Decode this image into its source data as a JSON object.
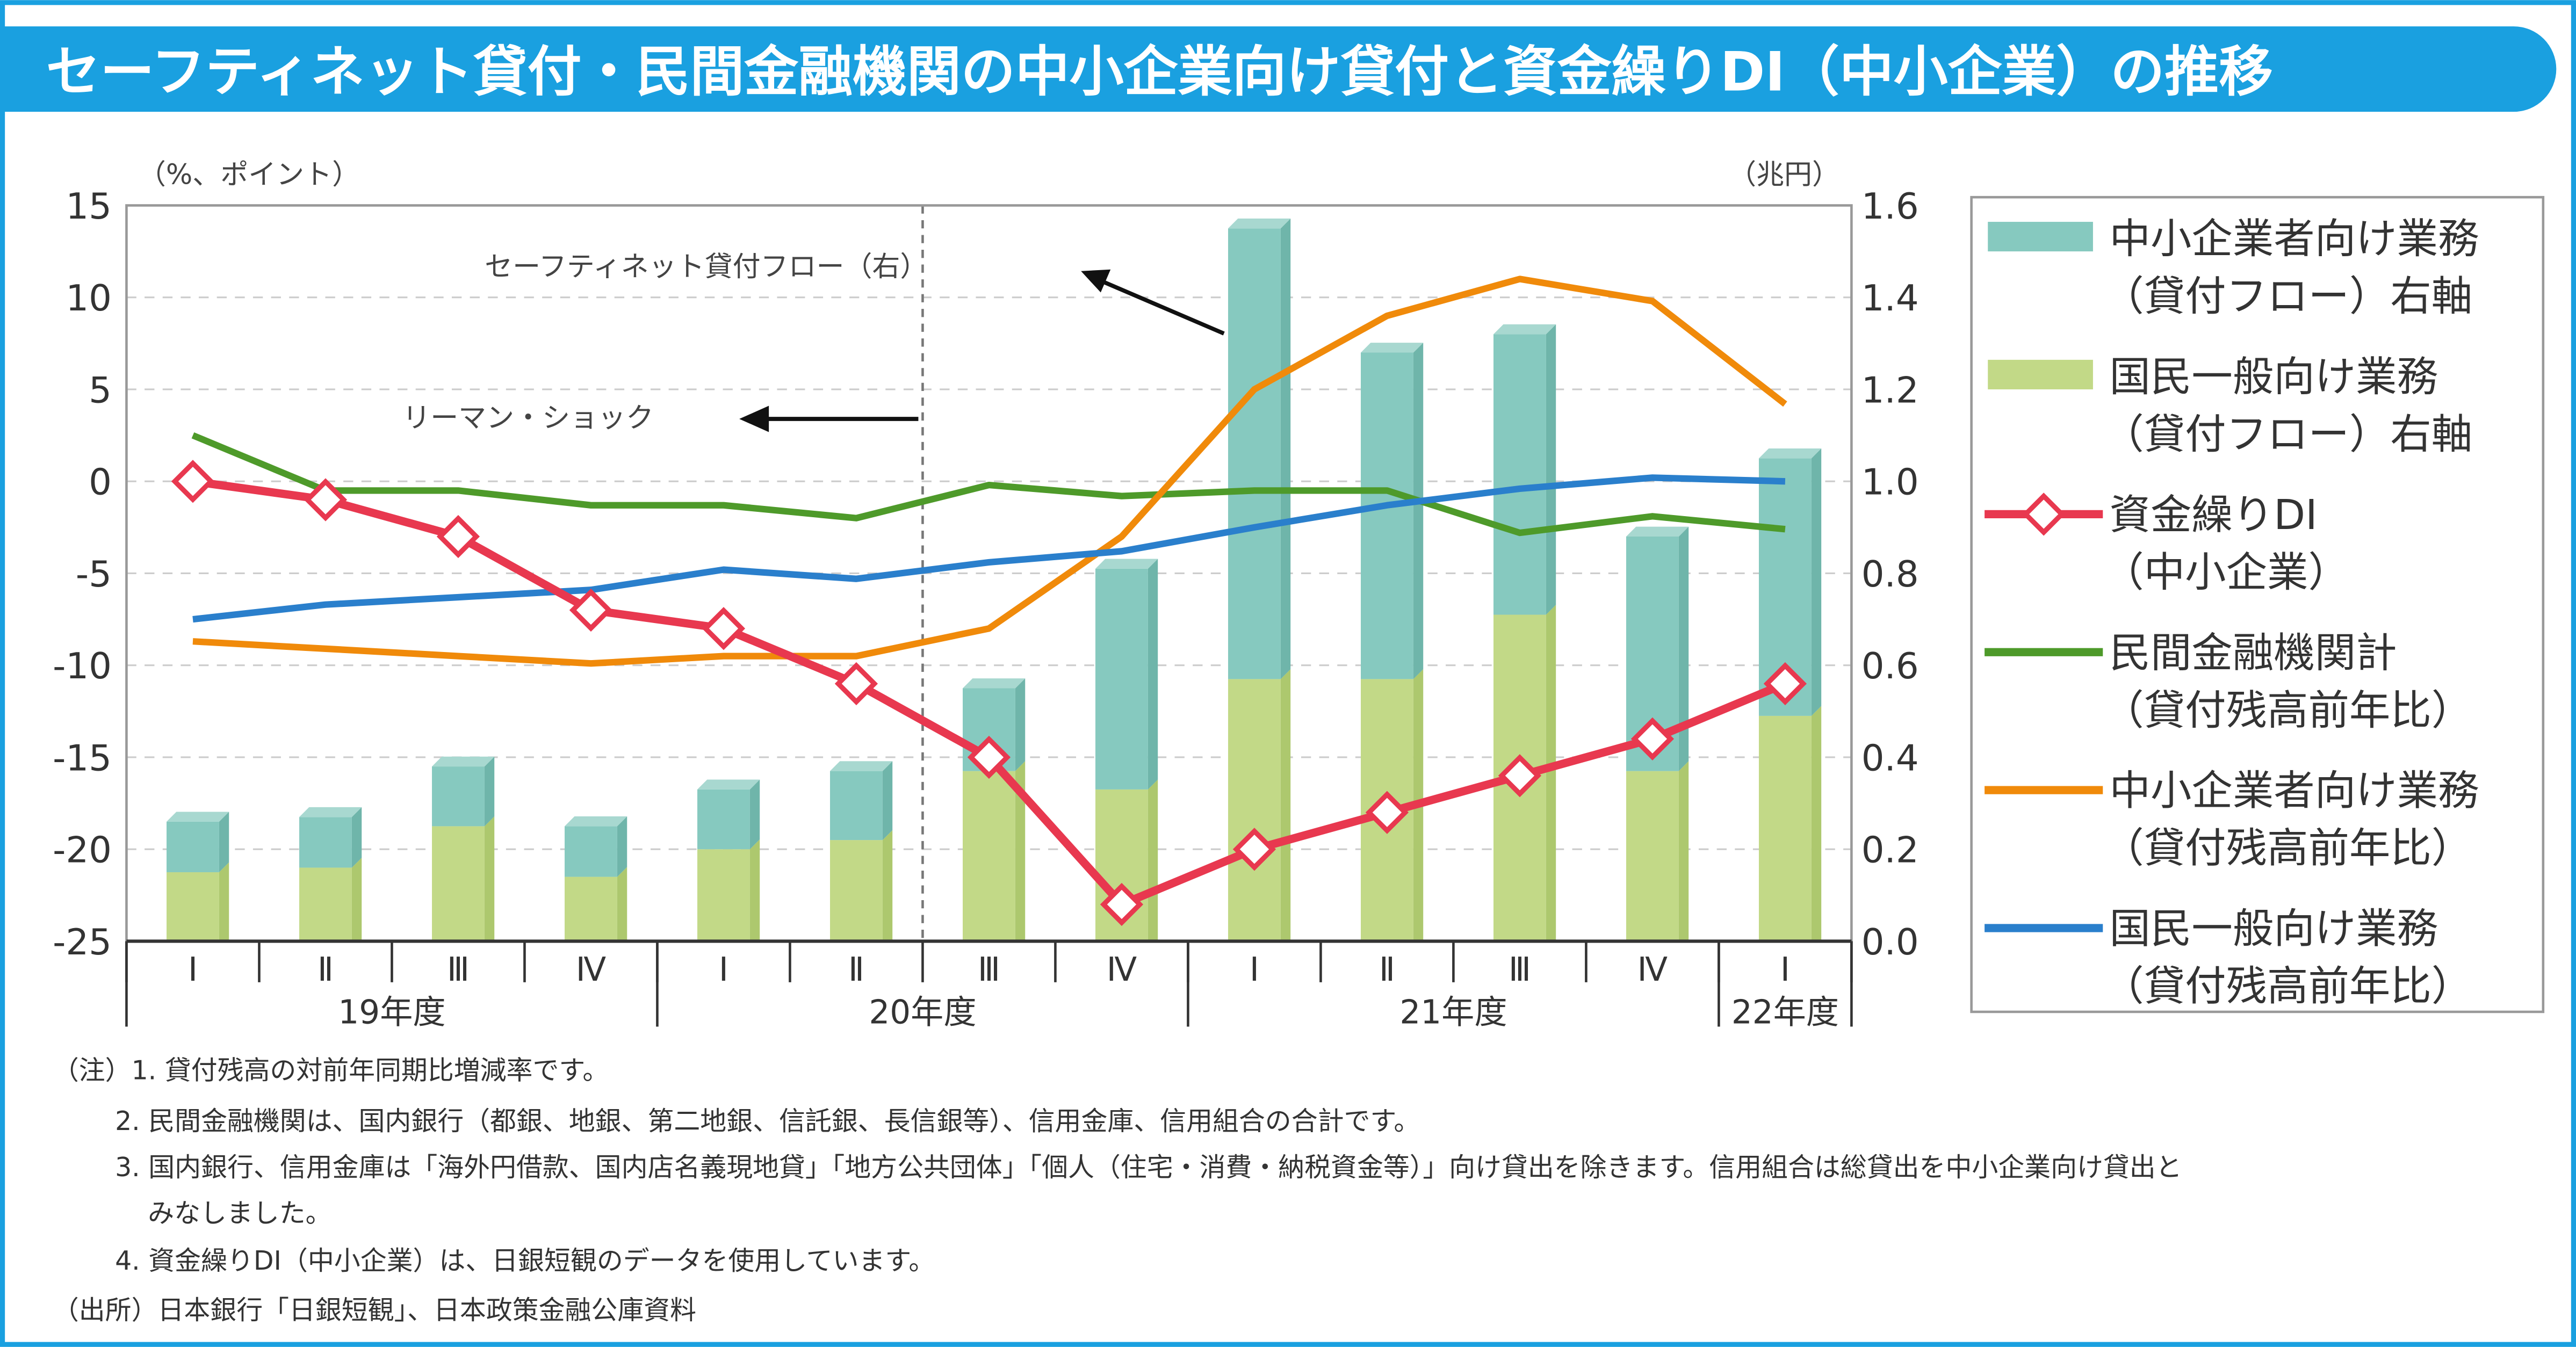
{
  "title": "セーフティネット貸付・民間金融機関の中小企業向け貸付と資金繰りDI（中小企業）の推移",
  "colors": {
    "frame": "#1aa0e0",
    "teal": "#86c9bf",
    "green_bar": "#c2d987",
    "di": "#e8384f",
    "private": "#4e9a2a",
    "sme": "#f08a0a",
    "general": "#2a7fcc"
  },
  "chart_data": {
    "type": "bar+line",
    "left_axis_label": "（%、ポイント）",
    "right_axis_label": "（兆円）",
    "left_ylim": [
      -25,
      15
    ],
    "left_ticks": [
      "15",
      "10",
      "5",
      "0",
      "-5",
      "-10",
      "-15",
      "-20",
      "-25"
    ],
    "right_ylim": [
      0,
      1.6
    ],
    "right_ticks": [
      "1.6",
      "1.4",
      "1.2",
      "1.0",
      "0.8",
      "0.6",
      "0.4",
      "0.2",
      "0.0"
    ],
    "categories": [
      "Ⅰ",
      "Ⅱ",
      "Ⅲ",
      "Ⅳ",
      "Ⅰ",
      "Ⅱ",
      "Ⅲ",
      "Ⅳ",
      "Ⅰ",
      "Ⅱ",
      "Ⅲ",
      "Ⅳ",
      "Ⅰ"
    ],
    "year_groups": [
      {
        "label": "19年度",
        "count": 4
      },
      {
        "label": "20年度",
        "count": 4
      },
      {
        "label": "21年度",
        "count": 4
      },
      {
        "label": "22年度",
        "count": 1
      }
    ],
    "grid": true,
    "legend_placement": "right",
    "bar_series": [
      {
        "name": "国民一般向け業務（貸付フロー）右軸",
        "axis": "right",
        "values": [
          0.15,
          0.16,
          0.25,
          0.14,
          0.2,
          0.22,
          0.37,
          0.33,
          0.57,
          0.57,
          0.71,
          0.37,
          0.49
        ]
      },
      {
        "name": "中小企業者向け業務（貸付フロー）右軸",
        "axis": "right",
        "values": [
          0.11,
          0.11,
          0.13,
          0.11,
          0.13,
          0.15,
          0.18,
          0.48,
          0.98,
          0.71,
          0.61,
          0.51,
          0.56
        ]
      }
    ],
    "line_series": [
      {
        "name": "資金繰りDI（中小企業）",
        "axis": "left",
        "marker": "diamond",
        "values": [
          0,
          -1,
          -3,
          -7,
          -8,
          -11,
          -15,
          -23,
          -20,
          -18,
          -16,
          -14,
          -11
        ]
      },
      {
        "name": "民間金融機関計（貸付残高前年比）",
        "axis": "left",
        "values": [
          2.5,
          -0.5,
          -0.5,
          -1.3,
          -1.3,
          -2.0,
          -0.2,
          -0.8,
          -0.5,
          -0.5,
          -2.8,
          -1.9,
          -2.6
        ]
      },
      {
        "name": "中小企業者向け業務（貸付残高前年比）",
        "axis": "left",
        "values": [
          -8.7,
          -9.1,
          -9.5,
          -9.9,
          -9.5,
          -9.5,
          -8.0,
          -3.0,
          5.0,
          9.0,
          11.0,
          9.8,
          4.2
        ]
      },
      {
        "name": "国民一般向け業務（貸付残高前年比）",
        "axis": "left",
        "values": [
          -7.5,
          -6.7,
          -6.3,
          -5.9,
          -4.8,
          -5.3,
          -4.4,
          -3.8,
          -2.5,
          -1.3,
          -0.4,
          0.2,
          0.0
        ]
      }
    ],
    "annotations": [
      {
        "text": "セーフティネット貸付フロー（右）"
      },
      {
        "text": "リーマン・ショック"
      }
    ]
  },
  "legend": [
    {
      "line1": "中小企業者向け業務",
      "line2": "（貸付フロー）右軸",
      "kind": "teal"
    },
    {
      "line1": "国民一般向け業務",
      "line2": "（貸付フロー）右軸",
      "kind": "green_bar"
    },
    {
      "line1": "資金繰りDI",
      "line2": "（中小企業）",
      "kind": "di"
    },
    {
      "line1": "民間金融機関計",
      "line2": "（貸付残高前年比）",
      "kind": "private"
    },
    {
      "line1": "中小企業者向け業務",
      "line2": "（貸付残高前年比）",
      "kind": "sme"
    },
    {
      "line1": "国民一般向け業務",
      "line2": "（貸付残高前年比）",
      "kind": "general"
    }
  ],
  "notes": [
    "（注）1. 貸付残高の対前年同期比増減率です。",
    "2. 民間金融機関は、国内銀行（都銀、地銀、第二地銀、信託銀、長信銀等）、信用金庫、信用組合の合計です。",
    "3. 国内銀行、信用金庫は「海外円借款、国内店名義現地貸」「地方公共団体」「個人（住宅・消費・納税資金等）」向け貸出を除きます。信用組合は総貸出を中小企業向け貸出と",
    "みなしました。",
    "4. 資金繰りDI（中小企業）は、日銀短観のデータを使用しています。",
    "（出所）日本銀行「日銀短観」、日本政策金融公庫資料"
  ]
}
